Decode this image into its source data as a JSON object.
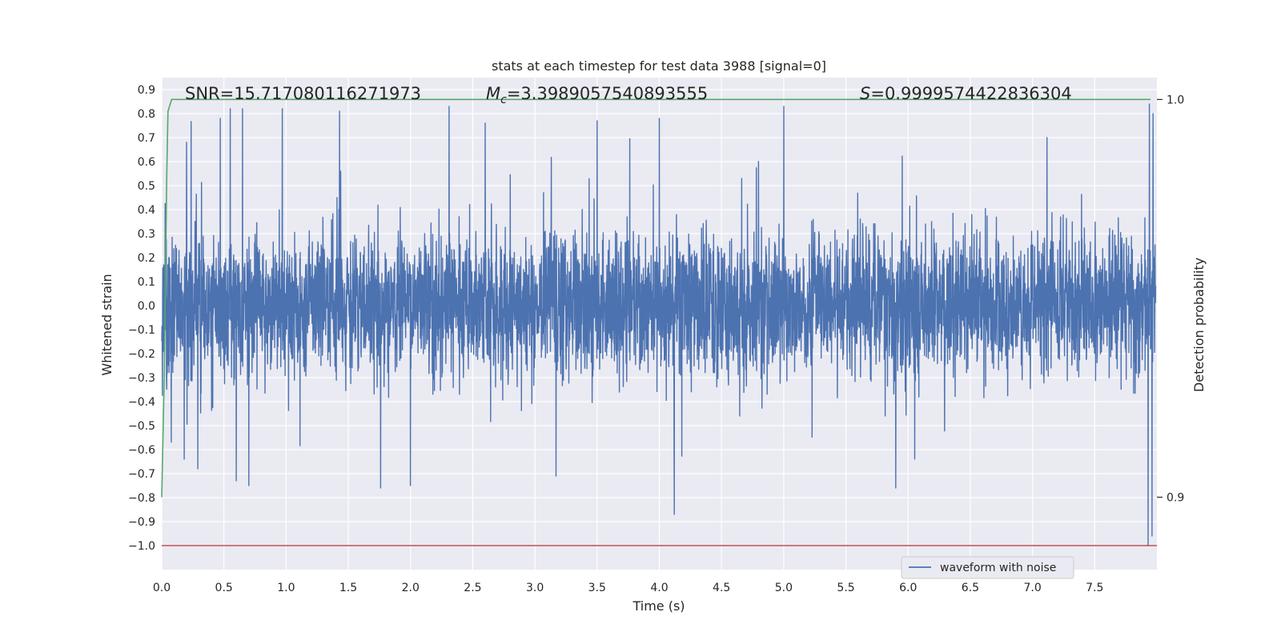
{
  "chart_data": {
    "type": "line",
    "title": "stats at each timestep for test data 3988 [signal=0]",
    "xlabel": "Time (s)",
    "ylabel": "Whitened strain",
    "ylabel_right": "Detection probability",
    "xlim": [
      0,
      8
    ],
    "ylim": [
      -1.1,
      0.95
    ],
    "ylim_right": [
      0.8818,
      1.0055
    ],
    "x_ticks": [
      0.0,
      0.5,
      1.0,
      1.5,
      2.0,
      2.5,
      3.0,
      3.5,
      4.0,
      4.5,
      5.0,
      5.5,
      6.0,
      6.5,
      7.0,
      7.5
    ],
    "x_tick_labels": [
      "0.0",
      "0.5",
      "1.0",
      "1.5",
      "2.0",
      "2.5",
      "3.0",
      "3.5",
      "4.0",
      "4.5",
      "5.0",
      "5.5",
      "6.0",
      "6.5",
      "7.0",
      "7.5"
    ],
    "y_ticks": [
      0.9,
      0.8,
      0.7,
      0.6,
      0.5,
      0.4,
      0.3,
      0.2,
      0.1,
      0.0,
      -0.1,
      -0.2,
      -0.3,
      -0.4,
      -0.5,
      -0.6,
      -0.7,
      -0.8,
      -0.9,
      -1.0
    ],
    "y_tick_labels": [
      "0.9",
      "0.8",
      "0.7",
      "0.6",
      "0.5",
      "0.4",
      "0.3",
      "0.2",
      "0.1",
      "0.0",
      "−0.1",
      "−0.2",
      "−0.3",
      "−0.4",
      "−0.5",
      "−0.6",
      "−0.7",
      "−0.8",
      "−0.9",
      "−1.0"
    ],
    "y_right_ticks": [
      1.0,
      0.9
    ],
    "y_right_tick_labels": [
      "1.0",
      "0.9"
    ],
    "grid": true,
    "legend": {
      "entries": [
        "waveform with noise"
      ],
      "placement": "lower-right"
    },
    "annotations": {
      "snr": "SNR=15.717080116271973",
      "mc_symbol": "M",
      "mc_subscript": "c",
      "mc_value": "=3.3989057540893555",
      "s_symbol": "S",
      "s_value": "=0.9999574422836304"
    },
    "series": [
      {
        "name": "waveform with noise",
        "axis": "left",
        "color": "#4c72b0",
        "description_stats": {
          "approx_range": [
            -1.0,
            0.84
          ],
          "typical_amplitude": 0.45
        },
        "peaks": [
          {
            "x": 0.2,
            "y": 0.68
          },
          {
            "x": 0.29,
            "y": 0.73
          },
          {
            "x": 0.47,
            "y": 0.78
          },
          {
            "x": 0.55,
            "y": 0.82
          },
          {
            "x": 0.65,
            "y": 0.82
          },
          {
            "x": 0.97,
            "y": 0.82
          },
          {
            "x": 1.43,
            "y": 0.81
          },
          {
            "x": 2.31,
            "y": 0.83
          },
          {
            "x": 2.6,
            "y": 0.76
          },
          {
            "x": 3.5,
            "y": 0.77
          },
          {
            "x": 4.0,
            "y": 0.78
          },
          {
            "x": 5.0,
            "y": 0.83
          },
          {
            "x": 7.94,
            "y": 0.84
          },
          {
            "x": 7.97,
            "y": 0.8
          }
        ],
        "troughs": [
          {
            "x": 0.18,
            "y": -0.64
          },
          {
            "x": 0.29,
            "y": -0.68
          },
          {
            "x": 0.6,
            "y": -0.73
          },
          {
            "x": 0.7,
            "y": -0.75
          },
          {
            "x": 1.76,
            "y": -0.76
          },
          {
            "x": 2.0,
            "y": -0.75
          },
          {
            "x": 3.17,
            "y": -0.71
          },
          {
            "x": 4.12,
            "y": -0.87
          },
          {
            "x": 5.9,
            "y": -0.76
          },
          {
            "x": 7.93,
            "y": -1.0
          },
          {
            "x": 7.96,
            "y": -0.96
          }
        ]
      },
      {
        "name": "",
        "axis": "right",
        "color": "#55a868",
        "x": [
          0.0,
          0.02,
          0.04,
          0.05,
          0.06,
          0.08,
          0.1,
          7.95
        ],
        "y": [
          0.9,
          0.93,
          0.98,
          0.997,
          0.998,
          1.0,
          1.0,
          1.0
        ]
      },
      {
        "name": "",
        "axis": "left",
        "color": "#c44e52",
        "x": [
          0.0,
          8.0
        ],
        "y": [
          -1.0,
          -1.0
        ]
      }
    ]
  }
}
